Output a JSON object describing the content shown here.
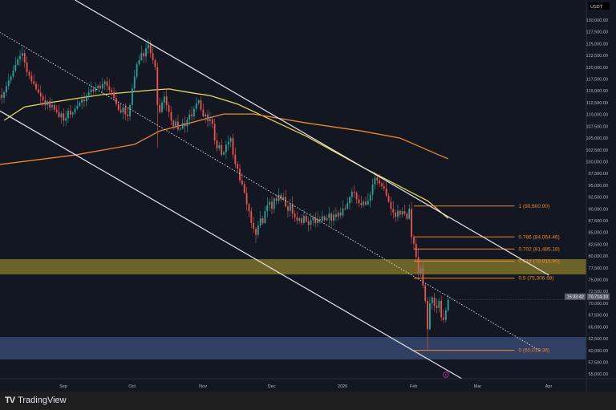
{
  "app": {
    "brand": "TradingView",
    "quote_currency": "USDT"
  },
  "colors": {
    "background": "#131722",
    "up": "#26a69a",
    "down": "#ef5350",
    "ma_fast": "#e8d85a",
    "ma_slow": "#f0862e",
    "channel": "#e6e6e6",
    "fib": "#f0862e",
    "zone_supply": "#8a7d2a",
    "zone_demand": "#3b4f78",
    "axis_text": "#b2b5be",
    "price_label_bg": "#5d606b",
    "event_marker": "#c2409b"
  },
  "chart_data": {
    "type": "candlestick",
    "title": "",
    "x_range": [
      "2025-08-01",
      "2026-04-15"
    ],
    "ylim": [
      55000,
      130000
    ],
    "x_tick_labels": [
      {
        "label": "Sep",
        "date": "2025-09-01"
      },
      {
        "label": "Oct",
        "date": "2025-10-01"
      },
      {
        "label": "Nov",
        "date": "2025-11-01"
      },
      {
        "label": "Dec",
        "date": "2025-12-01"
      },
      {
        "label": "2026",
        "date": "2026-01-01"
      },
      {
        "label": "Feb",
        "date": "2026-02-01"
      },
      {
        "label": "Mar",
        "date": "2026-03-01"
      },
      {
        "label": "Apr",
        "date": "2026-04-01"
      }
    ],
    "y_tick_labels": [
      "130,000.00",
      "127,500.00",
      "125,000.00",
      "122,500.00",
      "120,000.00",
      "117,500.00",
      "115,000.00",
      "112,500.00",
      "110,000.00",
      "107,500.00",
      "105,000.00",
      "102,500.00",
      "100,000.00",
      "97,500.00",
      "95,000.00",
      "92,500.00",
      "90,000.00",
      "87,500.00",
      "85,000.00",
      "82,500.00",
      "80,000.00",
      "77,500.00",
      "75,000.00",
      "72,500.00",
      "70,000.00",
      "67,500.00",
      "65,000.00",
      "62,500.00",
      "60,000.00",
      "57,500.00",
      "55,000.00"
    ],
    "daily_closes": [
      113000,
      114200,
      113500,
      114700,
      116000,
      117200,
      118000,
      119300,
      120500,
      121700,
      122400,
      123000,
      121000,
      119000,
      118200,
      117000,
      116500,
      115300,
      114600,
      113800,
      113000,
      112000,
      112800,
      111500,
      112000,
      111000,
      110500,
      109400,
      110200,
      108700,
      109200,
      110800,
      110000,
      110400,
      111200,
      111800,
      112500,
      113200,
      112800,
      114000,
      114700,
      115300,
      114900,
      115600,
      116100,
      115500,
      116400,
      117000,
      116000,
      115200,
      114700,
      113500,
      112200,
      111000,
      110400,
      111500,
      110000,
      109600,
      112000,
      115500,
      118000,
      120600,
      121500,
      123000,
      122300,
      124000,
      124800,
      123000,
      121500,
      120000,
      112000,
      110500,
      112500,
      113800,
      112000,
      110500,
      108700,
      107500,
      108500,
      106800,
      107000,
      108200,
      107500,
      108900,
      110000,
      109600,
      111200,
      112400,
      113000,
      111000,
      109600,
      110000,
      108600,
      109000,
      108000,
      104500,
      102800,
      103500,
      101500,
      102000,
      103600,
      104200,
      105000,
      101500,
      99500,
      98500,
      96000,
      95200,
      93400,
      91000,
      89500,
      87000,
      85800,
      84500,
      86500,
      88000,
      87000,
      89500,
      90800,
      91500,
      90000,
      92200,
      91700,
      93000,
      92000,
      92500,
      90500,
      89600,
      91000,
      89000,
      88200,
      87500,
      88000,
      87000,
      88500,
      87300,
      86600,
      87600,
      88200,
      87000,
      87800,
      87500,
      88400,
      87600,
      88000,
      89000,
      87500,
      88800,
      88300,
      89200,
      88600,
      90100,
      90000,
      91200,
      92500,
      93600,
      93400,
      92000,
      91200,
      90800,
      91500,
      90900,
      91700,
      93000,
      95200,
      96600,
      96000,
      95400,
      94800,
      94300,
      92800,
      91500,
      90000,
      89200,
      88300,
      89600,
      88800,
      89500,
      89000,
      87900,
      90000,
      84000,
      82600,
      79800,
      76400,
      77500,
      73800,
      70500,
      64500,
      70000,
      71200,
      69500,
      69000,
      70500,
      67000,
      66500,
      68500,
      70700
    ],
    "wick_extremes": [
      {
        "day": 11,
        "high": 124500
      },
      {
        "day": 66,
        "high": 126100
      },
      {
        "day": 70,
        "low": 103000
      },
      {
        "day": 113,
        "low": 82800
      },
      {
        "day": 165,
        "high": 97900
      },
      {
        "day": 188,
        "low": 60000
      }
    ],
    "moving_averages": [
      {
        "key": "fast",
        "points": [
          [
            "2025-08-04",
            108750
          ],
          [
            "2025-08-13",
            111600
          ],
          [
            "2025-08-24",
            112500
          ],
          [
            "2025-09-06",
            113500
          ],
          [
            "2025-09-16",
            114200
          ],
          [
            "2025-09-27",
            114700
          ],
          [
            "2025-10-08",
            115200
          ],
          [
            "2025-10-15",
            115400
          ],
          [
            "2025-10-26",
            114500
          ],
          [
            "2025-11-02",
            114000
          ],
          [
            "2025-11-14",
            112200
          ],
          [
            "2025-12-14",
            105400
          ],
          [
            "2026-01-07",
            99000
          ],
          [
            "2026-02-05",
            91700
          ],
          [
            "2026-02-14",
            88000
          ]
        ]
      },
      {
        "key": "slow",
        "points": [
          [
            "2025-08-02",
            99400
          ],
          [
            "2025-09-04",
            101400
          ],
          [
            "2025-09-30",
            103650
          ],
          [
            "2025-10-11",
            106500
          ],
          [
            "2025-11-08",
            110100
          ],
          [
            "2025-11-21",
            110100
          ],
          [
            "2025-12-14",
            108200
          ],
          [
            "2026-01-07",
            106500
          ],
          [
            "2026-01-24",
            105000
          ],
          [
            "2026-02-10",
            101400
          ],
          [
            "2026-02-14",
            100600
          ]
        ]
      }
    ],
    "trendlines": [
      {
        "name": "channel-upper",
        "style": "solid",
        "from": [
          "2025-09-04",
          134250
        ],
        "to": [
          "2026-03-30",
          75940
        ]
      },
      {
        "name": "channel-middle",
        "style": "dotted",
        "from": [
          "2025-08-02",
          127450
        ],
        "to": [
          "2026-03-26",
          59960
        ]
      },
      {
        "name": "channel-lower",
        "style": "solid",
        "from": [
          "2025-08-02",
          110790
        ],
        "to": [
          "2026-02-20",
          54010
        ]
      }
    ],
    "zones": [
      {
        "name": "supply-zone",
        "from": 76110,
        "to": 79340,
        "color_key": "zone_supply"
      },
      {
        "name": "demand-zone",
        "from": 58090,
        "to": 62850,
        "color_key": "zone_demand"
      }
    ],
    "fibonacci": {
      "start_date": "2026-01-30",
      "end_date": "2026-03-15",
      "levels": [
        {
          "ratio": "1",
          "price": 90600,
          "label": "1 (90,600.00)"
        },
        {
          "ratio": "0.786",
          "price": 84054.46,
          "label": "0.786 (84,054.46)"
        },
        {
          "ratio": "0.702",
          "price": 81485.18,
          "label": "0.702 (81,485.18)"
        },
        {
          "ratio": "0.618",
          "price": 78915.9,
          "label": "0.618 (78,915.90)"
        },
        {
          "ratio": "0.5",
          "price": 75306.68,
          "label": "0.5 (75,306.68)"
        },
        {
          "ratio": "0",
          "price": 60019.36,
          "label": "0 (60,019.36)"
        }
      ]
    },
    "last_price": {
      "price": 70714.1,
      "label": "70,714.10",
      "countdown": "15:33:42"
    },
    "event_marker": {
      "date": "2026-02-13",
      "icon": "event-flag-icon"
    }
  }
}
